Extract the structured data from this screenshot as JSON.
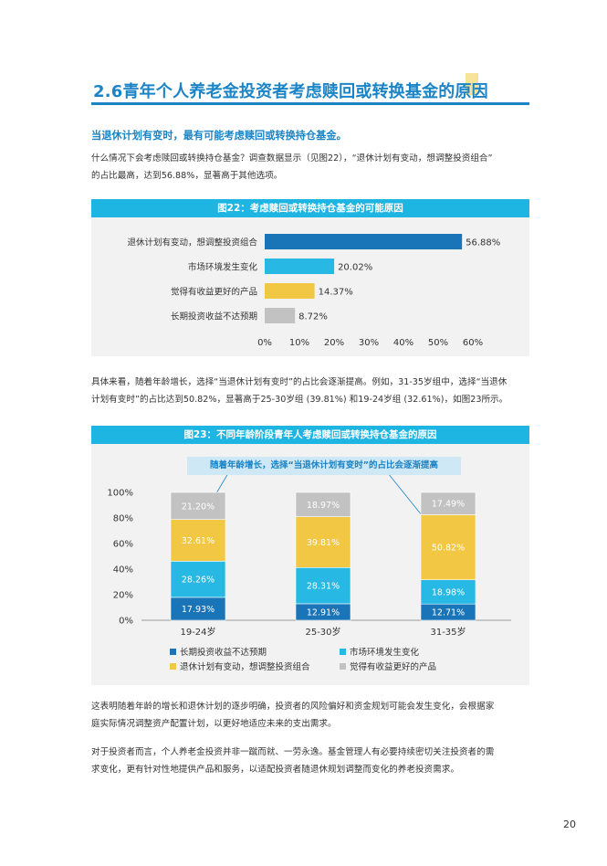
{
  "section": {
    "title": "2.6青年个人养老金投资者考虑赎回或转换基金的原因",
    "subhead": "当退休计划有变时，最有可能考虑赎回或转换持仓基金。",
    "para1_line1": "什么情况下会考虑赎回或转换持仓基金？调查数据显示（见图22），“退休计划有变动，想调整投资组合”",
    "para1_line2": "的占比最高，达到56.88%，显著高于其他选项。",
    "para2_line1": "具体来看，随着年龄增长，选择“当退休计划有变时”的占比会逐渐提高。例如，31-35岁组中，选择“当退休",
    "para2_line2": "计划有变时”的占比达到50.82%，显著高于25-30岁组 (39.81%) 和19-24岁组 (32.61%)，如图23所示。",
    "para3_line1": "这表明随着年龄的增长和退休计划的逐步明确，投资者的风险偏好和资金规划可能会发生变化，会根据家",
    "para3_line2": "庭实际情况调整资产配置计划，以更好地适应未来的支出需求。",
    "para4_line1": "对于投资者而言，个人养老金投资并非一蹴而就、一劳永逸。基金管理人有必要持续密切关注投资者的需",
    "para4_line2": "求变化，更有针对性地提供产品和服务，以适配投资者随退休规划调整而变化的养老投资需求。",
    "page_number": "20"
  },
  "colors": {
    "accent": "#1b84c6",
    "header_band": "#1fb5e2",
    "dark_blue": "#1a75b8",
    "cyan": "#27b9e3",
    "yellow": "#f2c744",
    "gray": "#c2c2c2"
  },
  "chart_data": [
    {
      "type": "bar",
      "orientation": "horizontal",
      "title": "图22：考虑赎回或转换持仓基金的可能原因",
      "categories": [
        "退休计划有变动，想调整投资组合",
        "市场环境发生变化",
        "觉得有收益更好的产品",
        "长期投资收益不达预期"
      ],
      "values": [
        56.88,
        20.02,
        14.37,
        8.72
      ],
      "value_labels": [
        "56.88%",
        "20.02%",
        "14.37%",
        "8.72%"
      ],
      "bar_colors": [
        "#1a75b8",
        "#27b9e3",
        "#f2c744",
        "#c2c2c2"
      ],
      "xlim": [
        0,
        60
      ],
      "xticks": [
        "0%",
        "10%",
        "20%",
        "30%",
        "40%",
        "50%",
        "60%"
      ]
    },
    {
      "type": "bar",
      "stacked": true,
      "title": "图23：不同年龄阶段青年人考虑赎回或转换持仓基金的原因",
      "annotation": "随着年龄增长，选择“当退休计划有变时”的占比会逐渐提高",
      "categories": [
        "19-24岁",
        "25-30岁",
        "31-35岁"
      ],
      "ylim": [
        0,
        100
      ],
      "yticks": [
        "0%",
        "20%",
        "40%",
        "60%",
        "80%",
        "100%"
      ],
      "series": [
        {
          "name": "长期投资收益不达预期",
          "color": "#1a75b8",
          "text_color": "#ffffff",
          "values": [
            17.93,
            12.91,
            12.71
          ],
          "labels": [
            "17.93%",
            "12.91%",
            "12.71%"
          ]
        },
        {
          "name": "市场环境发生变化",
          "color": "#27b9e3",
          "text_color": "#ffffff",
          "values": [
            28.26,
            28.31,
            18.98
          ],
          "labels": [
            "28.26%",
            "28.31%",
            "18.98%"
          ]
        },
        {
          "name": "退休计划有变动，想调整投资组合",
          "color": "#f2c744",
          "text_color": "#ffffff",
          "values": [
            32.61,
            39.81,
            50.82
          ],
          "labels": [
            "32.61%",
            "39.81%",
            "50.82%"
          ]
        },
        {
          "name": "觉得有收益更好的产品",
          "color": "#c2c2c2",
          "text_color": "#ffffff",
          "values": [
            21.2,
            18.97,
            17.49
          ],
          "labels": [
            "21.20%",
            "18.97%",
            "17.49%"
          ]
        }
      ]
    }
  ]
}
